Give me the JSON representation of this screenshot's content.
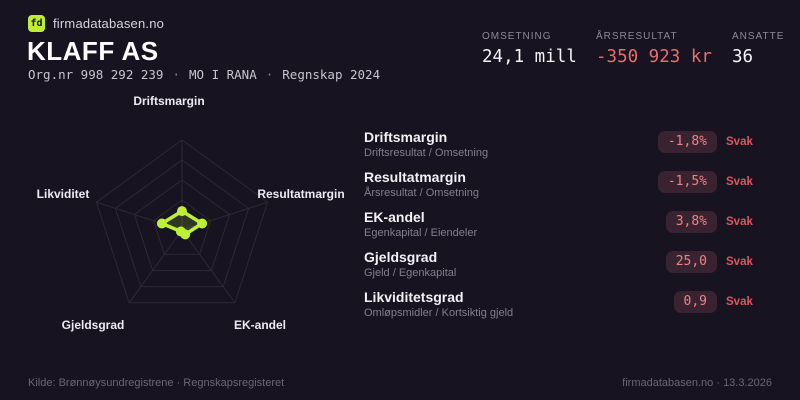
{
  "brand": {
    "logo_text": "fd",
    "site": "firmadatabasen.no"
  },
  "header": {
    "company": "KLAFF AS",
    "meta_parts": [
      "Org.nr 998 292 239",
      "MO I RANA",
      "Regnskap 2024"
    ],
    "meta_separator": "·",
    "stats": [
      {
        "label": "OMSETNING",
        "value": "24,1 mill",
        "color": "#f4f3f7"
      },
      {
        "label": "ÅRSRESULTAT",
        "value": "-350 923 kr",
        "color": "#e56e6e"
      },
      {
        "label": "ANSATTE",
        "value": "36",
        "color": "#f4f3f7"
      }
    ]
  },
  "chart_data": {
    "type": "radar",
    "title": "",
    "axes": [
      "Driftsmargin",
      "Resultatmargin",
      "EK-andel",
      "Gjeldsgrad",
      "Likviditet"
    ],
    "values_normalized": [
      0.21,
      0.235,
      0.06,
      0.02,
      0.235
    ],
    "value_labels": [
      "-1,8%",
      "-1,5%",
      "3,8%",
      "25,0",
      "0,9"
    ],
    "ratings": [
      "Svak",
      "Svak",
      "Svak",
      "Svak",
      "Svak"
    ],
    "max": 1,
    "rings_fraction": [
      0.333,
      0.556,
      0.778,
      1.0
    ],
    "legend": "off",
    "grid": "on",
    "accent_color": "#bdf136",
    "grid_color": "#2c2838"
  },
  "metrics": [
    {
      "title": "Driftsmargin",
      "formula": "Driftsresultat / Omsetning",
      "value": "-1,8%",
      "rating": "Svak"
    },
    {
      "title": "Resultatmargin",
      "formula": "Årsresultat / Omsetning",
      "value": "-1,5%",
      "rating": "Svak"
    },
    {
      "title": "EK-andel",
      "formula": "Egenkapital / Eiendeler",
      "value": "3,8%",
      "rating": "Svak"
    },
    {
      "title": "Gjeldsgrad",
      "formula": "Gjeld / Egenkapital",
      "value": "25,0",
      "rating": "Svak"
    },
    {
      "title": "Likviditetsgrad",
      "formula": "Omløpsmidler / Kortsiktig gjeld",
      "value": "0,9",
      "rating": "Svak"
    }
  ],
  "footer": {
    "left": "Kilde: Brønnøysundregistrene · Regnskapsregisteret",
    "right": "firmadatabasen.no · 13.3.2026"
  },
  "colors": {
    "background": "#171320",
    "accent": "#bdf136",
    "negative": "#e56e6e",
    "badge_bg": "#3a2330",
    "badge_text": "#ef8285",
    "rating_red": "#e4525f"
  }
}
